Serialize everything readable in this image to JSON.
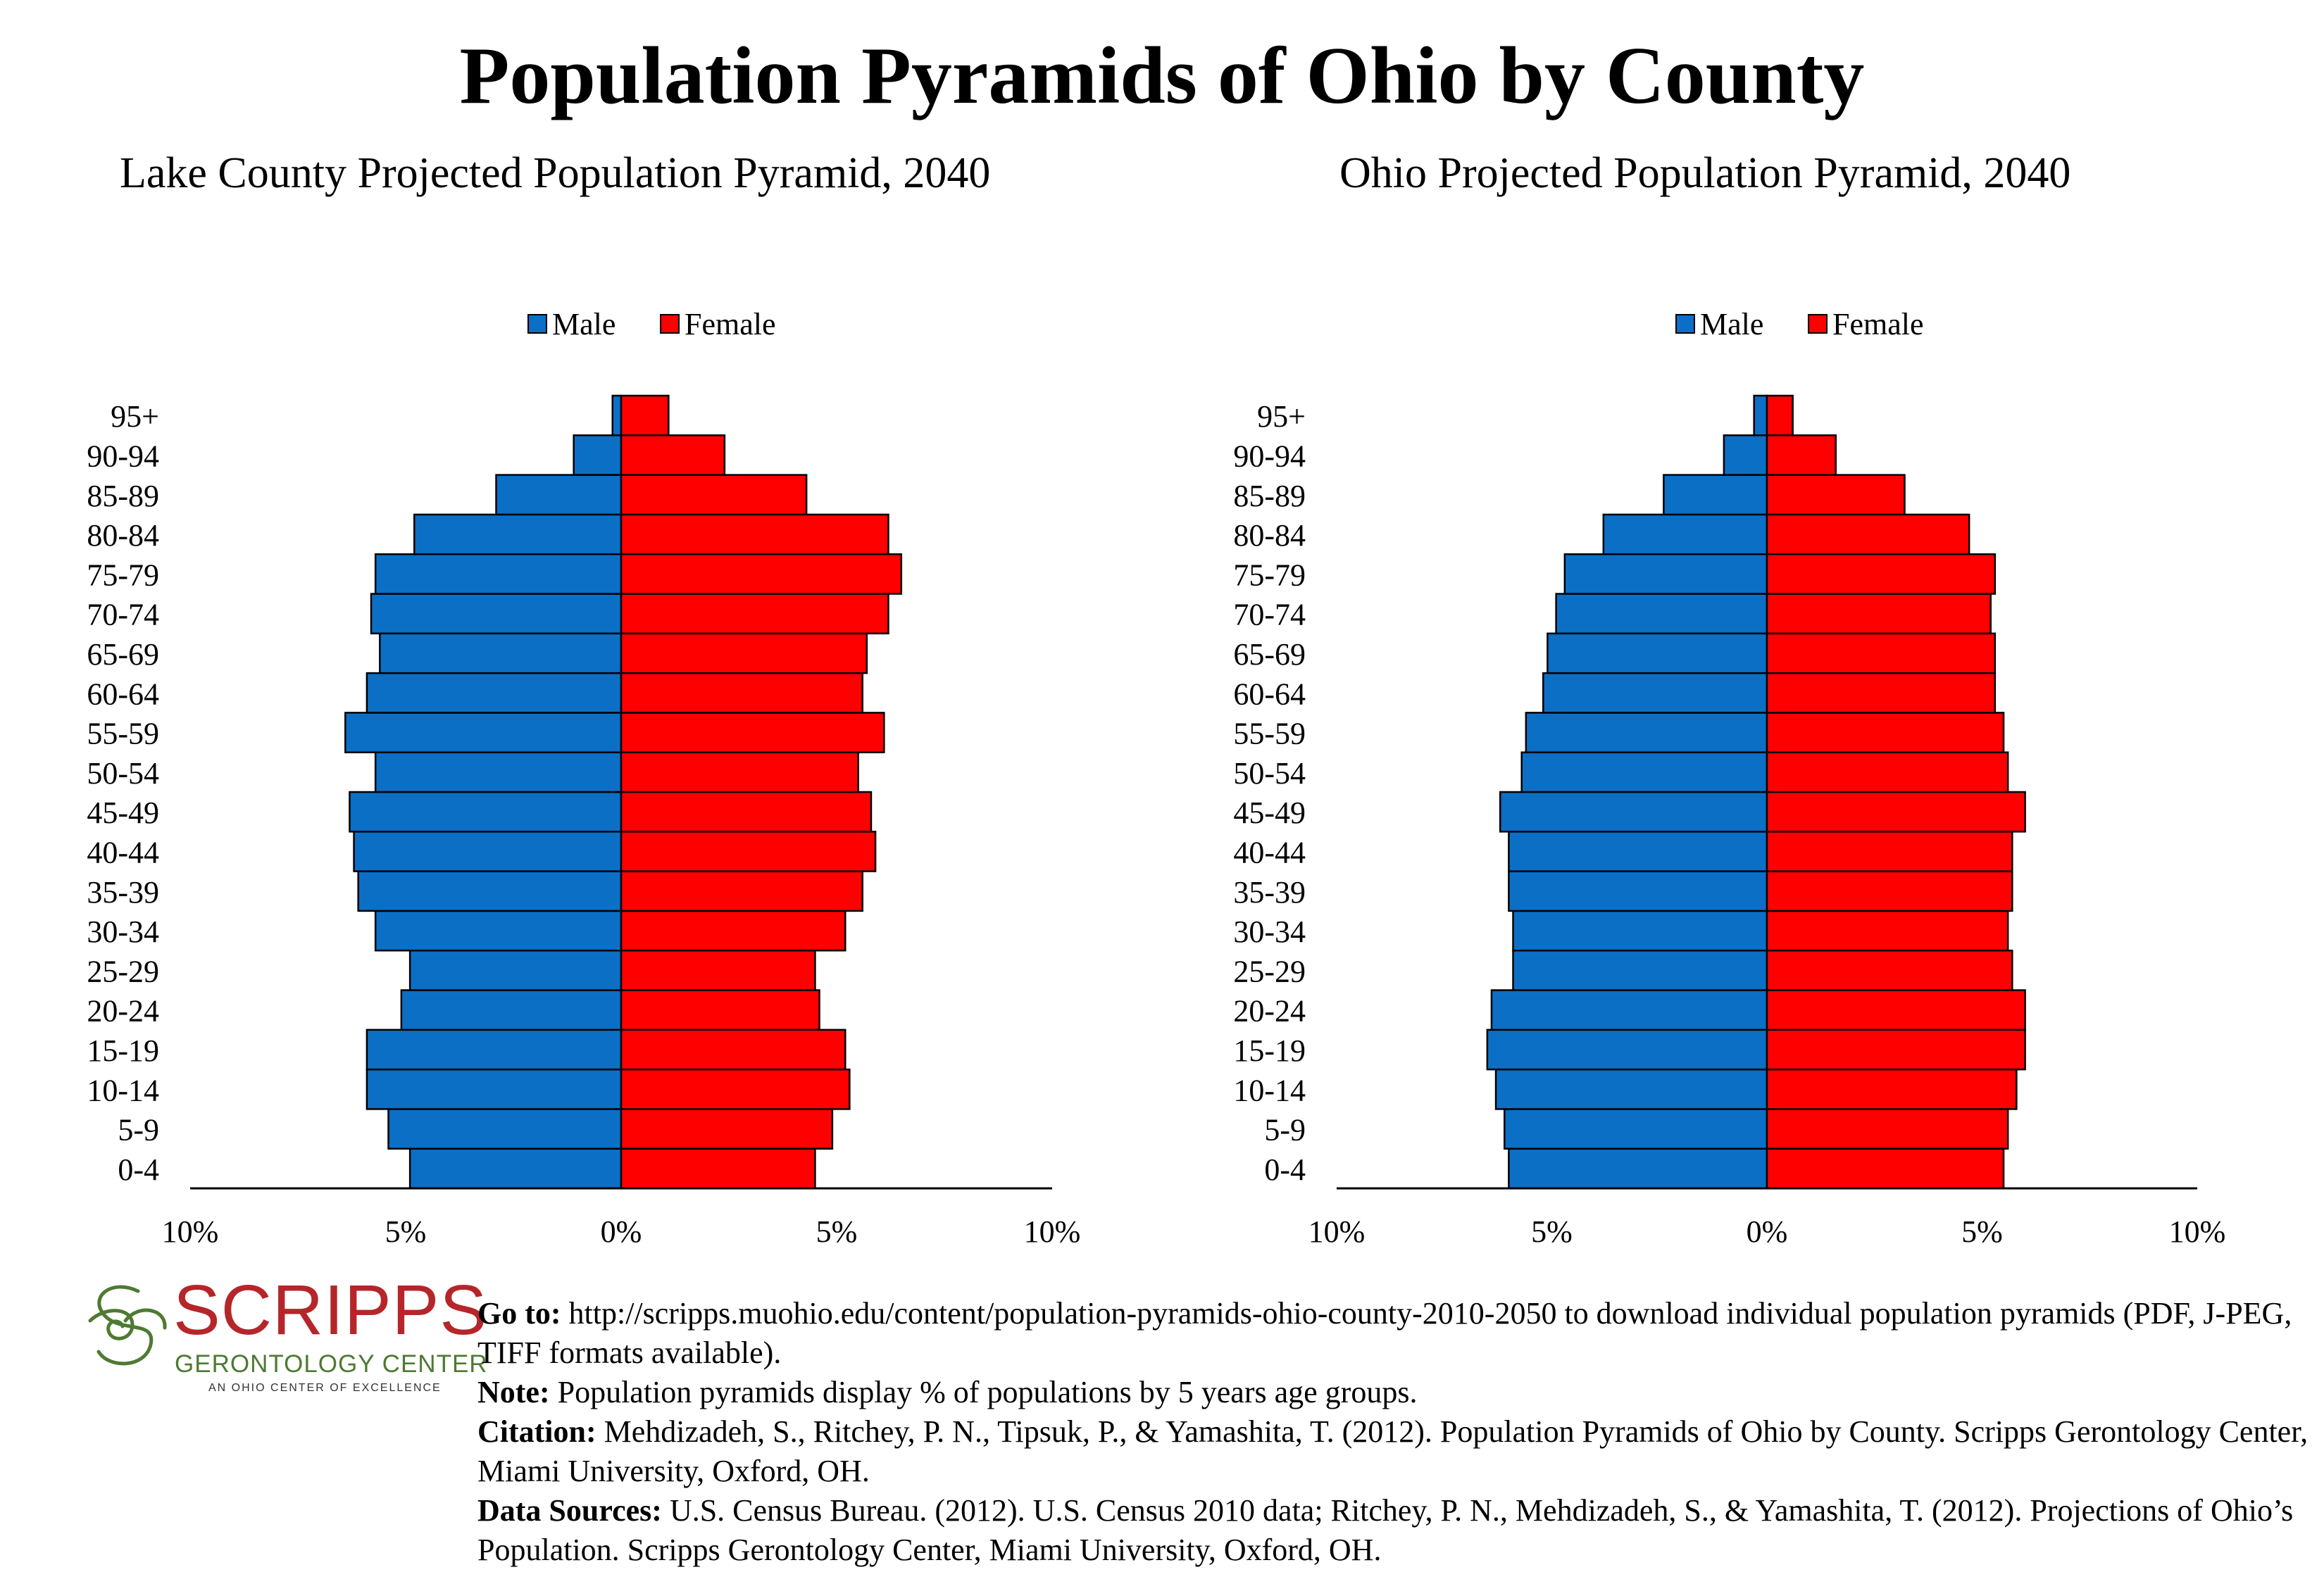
{
  "title": "Population Pyramids of Ohio by County",
  "colors": {
    "male": "#0b6fc6",
    "female": "#ff0000",
    "logo_red": "#b5262b",
    "logo_green": "#4e7a32"
  },
  "chart_data": [
    {
      "type": "bar",
      "orientation": "horizontal-pyramid",
      "title": "Lake County Projected Population Pyramid, 2040",
      "legend": [
        "Male",
        "Female"
      ],
      "legend_position": "top-center",
      "categories": [
        "0-4",
        "5-9",
        "10-14",
        "15-19",
        "20-24",
        "25-29",
        "30-34",
        "35-39",
        "40-44",
        "45-49",
        "50-54",
        "55-59",
        "60-64",
        "65-69",
        "70-74",
        "75-79",
        "80-84",
        "85-89",
        "90-94",
        "95+"
      ],
      "series": [
        {
          "name": "Male",
          "values": [
            4.9,
            5.4,
            5.9,
            5.9,
            5.1,
            4.9,
            5.7,
            6.1,
            6.2,
            6.3,
            5.7,
            6.4,
            5.9,
            5.6,
            5.8,
            5.7,
            4.8,
            2.9,
            1.1,
            0.2
          ]
        },
        {
          "name": "Female",
          "values": [
            4.5,
            4.9,
            5.3,
            5.2,
            4.6,
            4.5,
            5.2,
            5.6,
            5.9,
            5.8,
            5.5,
            6.1,
            5.6,
            5.7,
            6.2,
            6.5,
            6.2,
            4.3,
            2.4,
            1.1
          ]
        }
      ],
      "xlim": [
        -10,
        10
      ],
      "xticks": [
        "10%",
        "5%",
        "0%",
        "5%",
        "10%"
      ]
    },
    {
      "type": "bar",
      "orientation": "horizontal-pyramid",
      "title": "Ohio Projected Population Pyramid, 2040",
      "legend": [
        "Male",
        "Female"
      ],
      "legend_position": "top-center",
      "categories": [
        "0-4",
        "5-9",
        "10-14",
        "15-19",
        "20-24",
        "25-29",
        "30-34",
        "35-39",
        "40-44",
        "45-49",
        "50-54",
        "55-59",
        "60-64",
        "65-69",
        "70-74",
        "75-79",
        "80-84",
        "85-89",
        "90-94",
        "95+"
      ],
      "series": [
        {
          "name": "Male",
          "values": [
            6.0,
            6.1,
            6.3,
            6.5,
            6.4,
            5.9,
            5.9,
            6.0,
            6.0,
            6.2,
            5.7,
            5.6,
            5.2,
            5.1,
            4.9,
            4.7,
            3.8,
            2.4,
            1.0,
            0.3
          ]
        },
        {
          "name": "Female",
          "values": [
            5.5,
            5.6,
            5.8,
            6.0,
            6.0,
            5.7,
            5.6,
            5.7,
            5.7,
            6.0,
            5.6,
            5.5,
            5.3,
            5.3,
            5.2,
            5.3,
            4.7,
            3.2,
            1.6,
            0.6
          ]
        }
      ],
      "xlim": [
        -10,
        10
      ],
      "xticks": [
        "10%",
        "5%",
        "0%",
        "5%",
        "10%"
      ]
    }
  ],
  "notes": {
    "goto_label": "Go to:",
    "goto_text": " http://scripps.muohio.edu/content/population-pyramids-ohio-county-2010-2050 to download individual population pyramids (PDF, J-PEG, TIFF formats available).",
    "note_label": "Note:",
    "note_text": " Population pyramids display % of populations by 5 years age groups.",
    "citation_label": "Citation:",
    "citation_text": " Mehdizadeh, S., Ritchey, P. N., Tipsuk, P., & Yamashita, T. (2012). Population Pyramids of Ohio by County. Scripps Gerontology Center, Miami University, Oxford, OH.",
    "sources_label": "Data Sources:",
    "sources_text": " U.S. Census Bureau. (2012). U.S. Census 2010 data; Ritchey, P. N., Mehdizadeh, S., & Yamashita, T. (2012). Projections of Ohio’s Population. Scripps Gerontology Center, Miami University, Oxford, OH."
  },
  "logo": {
    "name": "SCRIPPS",
    "subtitle": "GERONTOLOGY CENTER",
    "tagline": "AN OHIO CENTER OF EXCELLENCE"
  }
}
